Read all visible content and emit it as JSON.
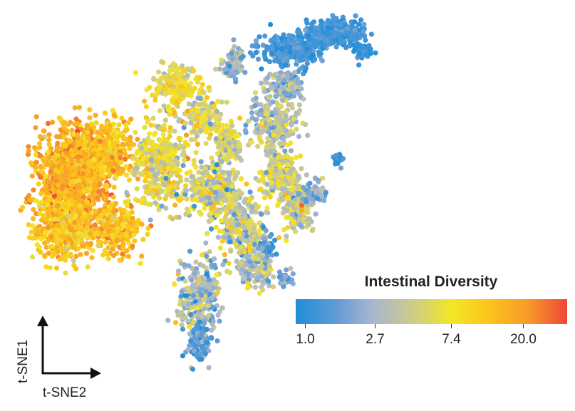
{
  "chart_data": {
    "type": "scatter",
    "xlabel": "t-SNE2",
    "ylabel": "t-SNE1",
    "color_scale": {
      "title": "Intestinal Diversity",
      "ticks": [
        "1.0",
        "2.7",
        "7.4",
        "20.0"
      ],
      "tick_values": [
        1.0,
        2.7,
        7.4,
        20.0
      ],
      "scale": "log",
      "colors": [
        "#1f8fd6",
        "#5e9ad6",
        "#a9b6cf",
        "#cccc8c",
        "#f3e627",
        "#fbc41c",
        "#f79a2a",
        "#ef4736"
      ]
    },
    "grid": false,
    "legend_placement": "bottom-right"
  }
}
